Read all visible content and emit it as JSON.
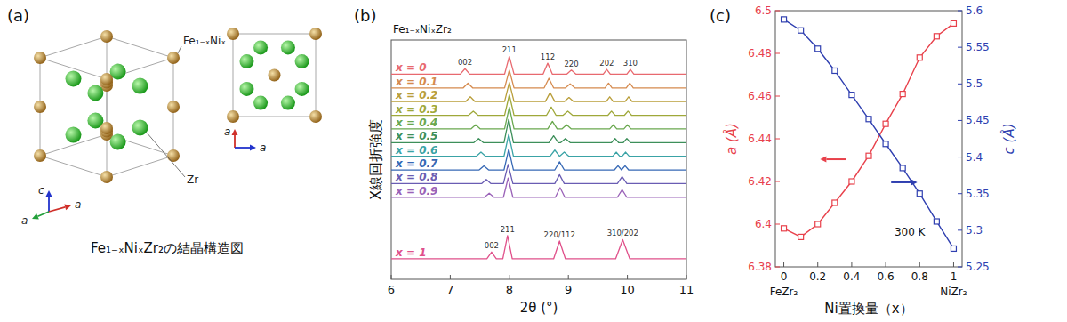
{
  "panel_a": {
    "letter": "(a)",
    "caption": "Fe₁₋ₓNiₓZr₂の結晶構造図",
    "site_labels": [
      "Fe₁₋ₓNiₓ",
      "Zr"
    ],
    "axis_labels_3d": [
      "c",
      "a",
      "a"
    ],
    "axis_labels_2d": [
      "a",
      "a"
    ]
  },
  "chart_data": [
    {
      "type": "line",
      "letter": "(b)",
      "title": "Fe₁₋ₓNiₓZr₂",
      "x_label": "2θ (°)",
      "y_label": "X線回折強度",
      "xlim": [
        6,
        11
      ],
      "xticks": [
        6,
        7,
        8,
        9,
        10,
        11
      ],
      "ylim": [
        0,
        17.5
      ],
      "tick_labels": "x",
      "series": [
        {
          "name": "x = 0",
          "color": "#e8696f",
          "x": [
            6,
            7.17,
            7.25,
            7.33,
            7.92,
            8,
            8.08,
            8.57,
            8.65,
            8.73,
            8.97,
            9.05,
            9.13,
            9.59,
            9.65,
            9.71,
            9.99,
            10.05,
            10.11,
            11
          ],
          "values": [
            15,
            15,
            15.4,
            15,
            15,
            16.3,
            15,
            15,
            15.8,
            15,
            15,
            15.3,
            15,
            15,
            15.35,
            15,
            15,
            15.35,
            15,
            15
          ],
          "peak_labels": [
            {
              "x": 7.25,
              "label": "002"
            },
            {
              "x": 8,
              "label": "211"
            },
            {
              "x": 8.65,
              "label": "112"
            },
            {
              "x": 9.05,
              "label": "220"
            },
            {
              "x": 9.65,
              "label": "202"
            },
            {
              "x": 10.05,
              "label": "310"
            }
          ]
        },
        {
          "name": "x = 0.1",
          "color": "#d58a4e",
          "x": [
            6,
            7.22,
            7.3,
            7.38,
            7.92,
            8,
            8.08,
            8.59,
            8.67,
            8.75,
            8.95,
            9.03,
            9.11,
            9.62,
            9.68,
            9.74,
            9.98,
            10.04,
            10.1,
            11
          ],
          "values": [
            14,
            14,
            14.35,
            14,
            14,
            15.3,
            14,
            14,
            14.7,
            14,
            14,
            14.3,
            14,
            14,
            14.35,
            14,
            14,
            14.35,
            14,
            14
          ]
        },
        {
          "name": "x = 0.2",
          "color": "#b99e3a",
          "x": [
            6,
            7.26,
            7.34,
            7.42,
            7.92,
            8,
            8.08,
            8.61,
            8.69,
            8.77,
            8.93,
            9.01,
            9.09,
            9.64,
            9.7,
            9.76,
            9.96,
            10.02,
            10.08,
            11
          ],
          "values": [
            13,
            13,
            13.35,
            13,
            13,
            14.4,
            13,
            13,
            13.65,
            13,
            13,
            13.3,
            13,
            13,
            13.35,
            13,
            13,
            13.35,
            13,
            13
          ]
        },
        {
          "name": "x = 0.3",
          "color": "#9fa83a",
          "x": [
            6,
            7.31,
            7.39,
            7.47,
            7.92,
            8,
            8.08,
            8.63,
            8.71,
            8.79,
            8.91,
            8.99,
            9.07,
            9.67,
            9.73,
            9.79,
            9.95,
            10.01,
            10.07,
            11
          ],
          "values": [
            12,
            12,
            12.3,
            12,
            12,
            13.5,
            12,
            12,
            12.6,
            12,
            12,
            12.3,
            12,
            12,
            12.3,
            12,
            12,
            12.3,
            12,
            12
          ]
        },
        {
          "name": "x = 0.4",
          "color": "#6aa84f",
          "x": [
            6,
            7.35,
            7.43,
            7.51,
            7.92,
            8,
            8.08,
            8.65,
            8.73,
            8.81,
            8.89,
            8.97,
            9.05,
            9.7,
            9.76,
            9.82,
            9.94,
            10,
            10.06,
            11
          ],
          "values": [
            11,
            11,
            11.3,
            11,
            11,
            12.6,
            11,
            11,
            11.55,
            11,
            11,
            11.3,
            11,
            11,
            11.3,
            11,
            11,
            11.3,
            11,
            11
          ]
        },
        {
          "name": "x = 0.5",
          "color": "#3d8f5a",
          "x": [
            6,
            7.4,
            7.48,
            7.56,
            7.91,
            7.99,
            8.07,
            8.67,
            8.75,
            8.83,
            8.87,
            8.95,
            9.03,
            9.73,
            9.79,
            9.85,
            9.93,
            9.99,
            10.05,
            11
          ],
          "values": [
            10,
            10,
            10.3,
            10,
            10,
            11.7,
            10,
            10,
            10.5,
            10,
            10,
            10.3,
            10,
            10,
            10.3,
            10,
            10,
            10.3,
            10,
            10
          ]
        },
        {
          "name": "x = 0.6",
          "color": "#3aa3a6",
          "x": [
            6,
            7.44,
            7.52,
            7.6,
            7.91,
            7.99,
            8.07,
            8.69,
            8.77,
            8.85,
            8.85,
            8.93,
            9.01,
            9.75,
            9.81,
            9.87,
            9.91,
            9.97,
            10.03,
            11
          ],
          "values": [
            9,
            9,
            9.3,
            9,
            9,
            10.6,
            9,
            9,
            9.45,
            9,
            9,
            9.3,
            9,
            9,
            9.3,
            9,
            9,
            9.3,
            9,
            9
          ]
        },
        {
          "name": "x = 0.7",
          "color": "#3668b5",
          "x": [
            6,
            7.49,
            7.57,
            7.65,
            7.91,
            7.99,
            8.07,
            8.77,
            8.85,
            8.93,
            9.78,
            9.84,
            9.9,
            9.9,
            9.96,
            10.02,
            11
          ],
          "values": [
            8,
            8,
            8.3,
            8,
            8,
            9.5,
            8,
            8,
            8.6,
            8,
            8,
            8.3,
            8,
            8,
            8.3,
            8,
            8
          ]
        },
        {
          "name": "x = 0.8",
          "color": "#6a5db3",
          "x": [
            6,
            7.53,
            7.61,
            7.69,
            7.9,
            7.98,
            8.06,
            8.77,
            8.85,
            8.93,
            9.83,
            9.91,
            9.99,
            11
          ],
          "values": [
            7,
            7,
            7.3,
            7,
            7,
            8.4,
            7,
            7,
            7.65,
            7,
            7,
            7.5,
            7,
            7
          ]
        },
        {
          "name": "x = 0.9",
          "color": "#9a62b8",
          "x": [
            6,
            7.58,
            7.66,
            7.74,
            7.9,
            7.98,
            8.06,
            8.78,
            8.86,
            8.94,
            9.83,
            9.91,
            9.99,
            11
          ],
          "values": [
            6,
            6,
            6.3,
            6,
            6,
            7.4,
            6,
            6,
            6.7,
            6,
            6,
            6.55,
            6,
            6
          ]
        },
        {
          "name": "x = 1",
          "color": "#e0508a",
          "x": [
            6,
            7.62,
            7.7,
            7.78,
            7.89,
            7.97,
            8.05,
            8.75,
            8.85,
            8.95,
            9.8,
            9.92,
            10.04,
            11
          ],
          "values": [
            1.5,
            1.5,
            2,
            1.5,
            1.5,
            3.2,
            1.5,
            1.5,
            2.8,
            1.5,
            1.5,
            2.9,
            1.5,
            1.5
          ],
          "peak_labels": [
            {
              "x": 7.7,
              "label": "002"
            },
            {
              "x": 7.97,
              "label": "211"
            },
            {
              "x": 8.85,
              "label": "220/112"
            },
            {
              "x": 9.92,
              "label": "310/202"
            }
          ]
        }
      ]
    },
    {
      "type": "line",
      "letter": "(c)",
      "x_label": "Ni置換量（x）",
      "x_end_labels": [
        {
          "x": 0,
          "label": "FeZr₂"
        },
        {
          "x": 1,
          "label": "NiZr₂"
        }
      ],
      "y_label": "a (Å)",
      "y2_label": "c (Å)",
      "annotation": "300 K",
      "x": [
        0,
        0.1,
        0.2,
        0.3,
        0.4,
        0.5,
        0.6,
        0.7,
        0.8,
        0.9,
        1
      ],
      "xlim": [
        -0.05,
        1.05
      ],
      "xticks": [
        0,
        0.2,
        0.4,
        0.6,
        0.8,
        1
      ],
      "ylim": [
        6.38,
        6.5
      ],
      "yticks": [
        6.38,
        6.4,
        6.42,
        6.44,
        6.46,
        6.48,
        6.5
      ],
      "y2lim": [
        5.25,
        5.6
      ],
      "y2ticks": [
        5.25,
        5.3,
        5.35,
        5.4,
        5.45,
        5.5,
        5.55,
        5.6
      ],
      "series": [
        {
          "color": "#e8414b",
          "marker": "square",
          "values": [
            6.398,
            6.394,
            6.4,
            6.41,
            6.42,
            6.432,
            6.447,
            6.461,
            6.478,
            6.488,
            6.494
          ]
        },
        {
          "color": "#2f3fb0",
          "marker": "square",
          "axis": "y2",
          "values": [
            5.588,
            5.573,
            5.548,
            5.518,
            5.485,
            5.452,
            5.418,
            5.385,
            5.35,
            5.312,
            5.275
          ]
        }
      ]
    }
  ]
}
